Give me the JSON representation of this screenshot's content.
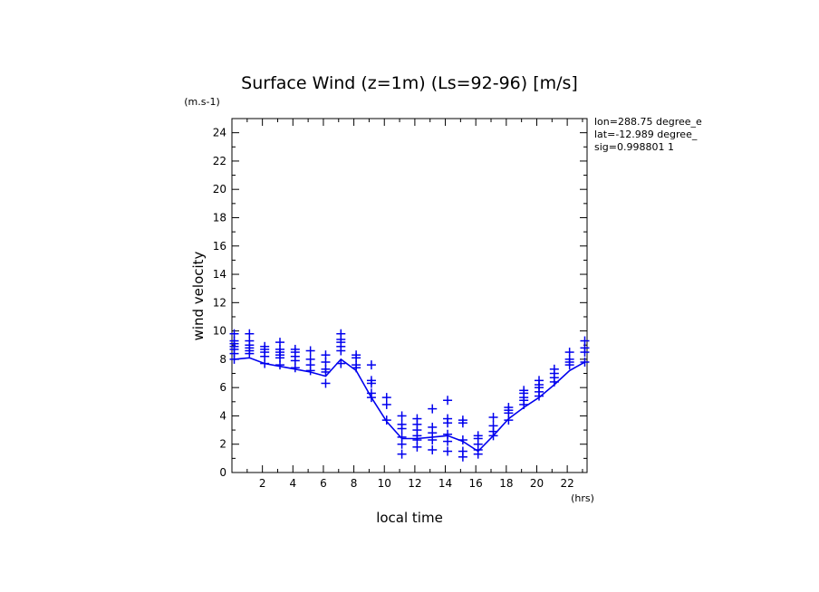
{
  "chart_data": {
    "type": "line",
    "title": "Surface Wind (z=1m) (Ls=92-96) [m/s]",
    "ylabel": "wind velocity",
    "yunit": "(m.s-1)",
    "xlabel": "local time",
    "xunit": "(hrs)",
    "xlim": [
      0,
      23.3
    ],
    "ylim": [
      0,
      25
    ],
    "xticks": [
      2,
      4,
      6,
      8,
      10,
      12,
      14,
      16,
      18,
      20,
      22
    ],
    "yticks": [
      0,
      2,
      4,
      6,
      8,
      10,
      12,
      14,
      16,
      18,
      20,
      22,
      24
    ],
    "info": [
      "lon=288.75 degree_e",
      "lat=-12.989 degree_",
      "sig=0.998801 1"
    ],
    "color": "#0000ee",
    "mean_line": {
      "x": [
        0.15,
        1.15,
        2.15,
        3.15,
        4.15,
        5.15,
        6.15,
        7.15,
        8.15,
        9.15,
        10.15,
        11.15,
        12.15,
        13.15,
        14.15,
        15.15,
        16.15,
        17.15,
        18.15,
        19.15,
        20.15,
        21.15,
        22.15,
        23.15
      ],
      "y": [
        8.0,
        8.1,
        7.7,
        7.5,
        7.3,
        7.1,
        6.8,
        8.0,
        7.2,
        5.3,
        3.6,
        2.4,
        2.4,
        2.5,
        2.6,
        2.2,
        1.5,
        2.6,
        3.8,
        4.6,
        5.3,
        6.2,
        7.2,
        7.8
      ]
    },
    "scatter": {
      "x": [
        0.15,
        1.15,
        2.15,
        3.15,
        4.15,
        5.15,
        6.15,
        7.15,
        8.15,
        9.15,
        10.15,
        11.15,
        12.15,
        13.15,
        14.15,
        15.15,
        16.15,
        17.15,
        18.15,
        19.15,
        20.15,
        21.15,
        22.15,
        23.15
      ],
      "y_sets": [
        [
          8.0,
          8.4,
          8.7,
          8.9,
          9.1,
          9.3,
          9.8
        ],
        [
          8.4,
          8.6,
          8.8,
          9.0,
          9.3,
          9.8
        ],
        [
          7.7,
          8.2,
          8.5,
          8.7,
          8.9
        ],
        [
          7.6,
          8.1,
          8.3,
          8.5,
          8.7,
          9.2
        ],
        [
          7.4,
          7.9,
          8.2,
          8.5,
          8.7
        ],
        [
          7.2,
          7.6,
          8.0,
          8.6
        ],
        [
          6.3,
          7.1,
          7.3,
          7.8,
          8.3
        ],
        [
          7.7,
          8.6,
          8.9,
          9.2,
          9.4,
          9.8
        ],
        [
          7.4,
          7.6,
          8.1,
          8.3
        ],
        [
          5.3,
          5.6,
          6.3,
          6.5,
          7.6
        ],
        [
          3.7,
          4.8,
          5.3
        ],
        [
          1.3,
          2.0,
          2.5,
          3.1,
          3.4,
          4.0
        ],
        [
          1.8,
          2.3,
          2.6,
          3.0,
          3.4,
          3.8
        ],
        [
          1.6,
          2.3,
          2.8,
          3.2,
          4.5
        ],
        [
          1.5,
          2.2,
          2.7,
          3.5,
          3.8,
          5.1
        ],
        [
          1.1,
          1.5,
          2.3,
          3.5,
          3.7
        ],
        [
          1.3,
          1.6,
          2.0,
          2.4,
          2.6
        ],
        [
          2.6,
          2.9,
          3.3,
          3.9
        ],
        [
          3.7,
          4.2,
          4.4,
          4.6
        ],
        [
          4.8,
          5.1,
          5.3,
          5.6,
          5.8
        ],
        [
          5.4,
          5.7,
          6.0,
          6.2,
          6.5
        ],
        [
          6.4,
          6.7,
          7.0,
          7.3
        ],
        [
          7.6,
          7.8,
          8.0,
          8.5
        ],
        [
          7.8,
          8.5,
          8.8,
          9.3
        ]
      ]
    }
  }
}
